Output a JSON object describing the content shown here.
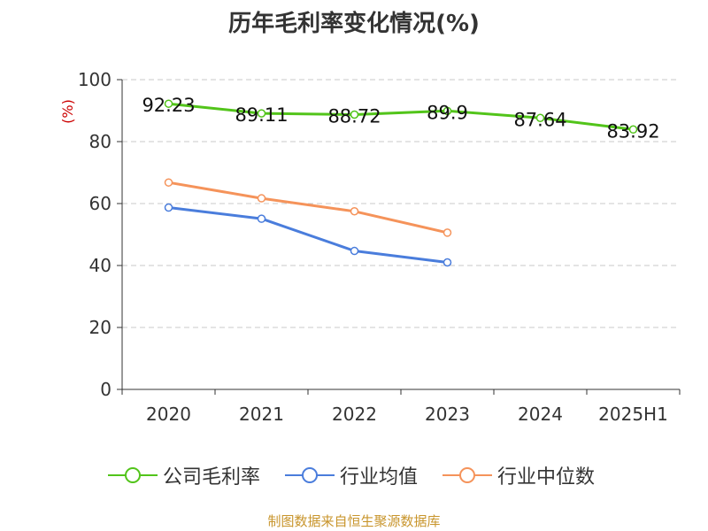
{
  "chart_data": {
    "type": "line",
    "title": "历年毛利率变化情况(%)",
    "ylabel": "(%)",
    "categories": [
      "2020",
      "2021",
      "2022",
      "2023",
      "2024",
      "2025H1"
    ],
    "ylim": [
      0,
      100
    ],
    "yticks": [
      0,
      20,
      40,
      60,
      80,
      100
    ],
    "grid": true,
    "legend_position": "bottom",
    "series": [
      {
        "name": "公司毛利率",
        "color": "#52c41a",
        "values": [
          92.23,
          89.11,
          88.72,
          89.9,
          87.64,
          83.92
        ],
        "labels": true
      },
      {
        "name": "行业均值",
        "color": "#4a7ddc",
        "values": [
          58.7,
          55.1,
          44.7,
          41.0,
          null,
          null
        ],
        "labels": false
      },
      {
        "name": "行业中位数",
        "color": "#f5935a",
        "values": [
          66.8,
          61.7,
          57.5,
          50.6,
          null,
          null
        ],
        "labels": false
      }
    ],
    "source": "制图数据来自恒生聚源数据库"
  }
}
